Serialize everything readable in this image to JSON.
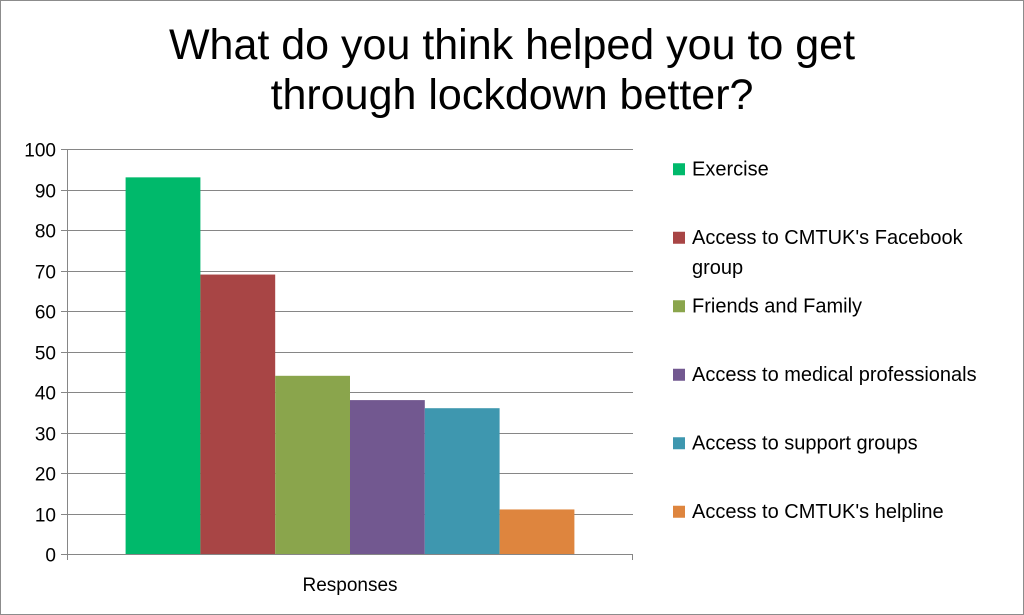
{
  "chart_data": {
    "type": "bar",
    "title": "What do you think helped you to get\nthrough lockdown better?",
    "categories": [
      "Responses"
    ],
    "series": [
      {
        "name": "Exercise",
        "values": [
          93
        ],
        "color": "#00b96b"
      },
      {
        "name": "Access to CMTUK's Facebook group",
        "values": [
          69
        ],
        "color": "#a84545"
      },
      {
        "name": "Friends and Family",
        "values": [
          44
        ],
        "color": "#8aa54c"
      },
      {
        "name": "Access to medical professionals",
        "values": [
          38
        ],
        "color": "#725890"
      },
      {
        "name": "Access to support groups",
        "values": [
          36
        ],
        "color": "#3e97af"
      },
      {
        "name": "Access to CMTUK's helpline",
        "values": [
          11
        ],
        "color": "#de853e"
      }
    ],
    "ylim": [
      0,
      100
    ],
    "yticks": [
      0,
      10,
      20,
      30,
      40,
      50,
      60,
      70,
      80,
      90,
      100
    ],
    "grid": true,
    "legend": "right"
  }
}
